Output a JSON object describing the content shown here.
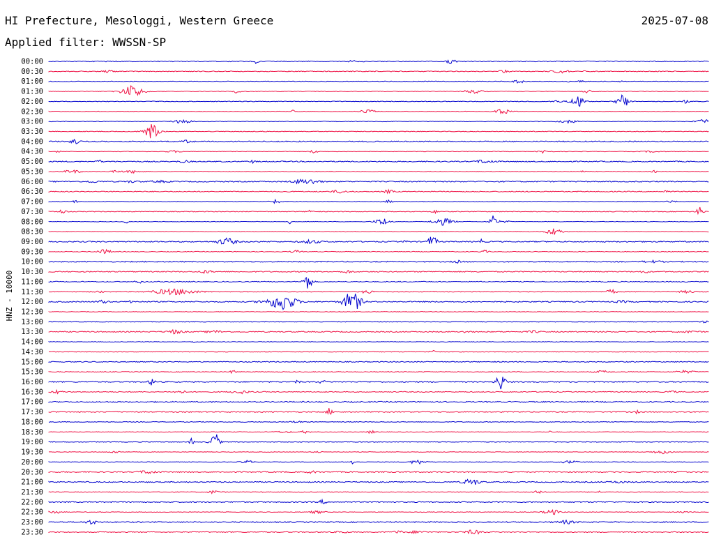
{
  "header": {
    "station": "HI Prefecture, Mesologgi, Western Greece",
    "date": "2025-07-08",
    "filter": "Applied filter: WWSSN-SP"
  },
  "chart_data": {
    "type": "line",
    "ylabel": "HNZ - 10000",
    "trace_colors": [
      "#0000cc",
      "#ee1144"
    ],
    "categories": [
      "00:00",
      "00:30",
      "01:00",
      "01:30",
      "02:00",
      "02:30",
      "03:00",
      "03:30",
      "04:00",
      "04:30",
      "05:00",
      "05:30",
      "06:00",
      "06:30",
      "07:00",
      "07:30",
      "08:00",
      "08:30",
      "09:00",
      "09:30",
      "10:00",
      "10:30",
      "11:00",
      "11:30",
      "12:00",
      "12:30",
      "13:00",
      "13:30",
      "14:00",
      "14:30",
      "15:00",
      "15:30",
      "16:00",
      "16:30",
      "17:00",
      "17:30",
      "18:00",
      "18:30",
      "19:00",
      "19:30",
      "20:00",
      "20:30",
      "21:00",
      "21:30",
      "22:00",
      "22:30",
      "23:00",
      "23:30"
    ]
  }
}
